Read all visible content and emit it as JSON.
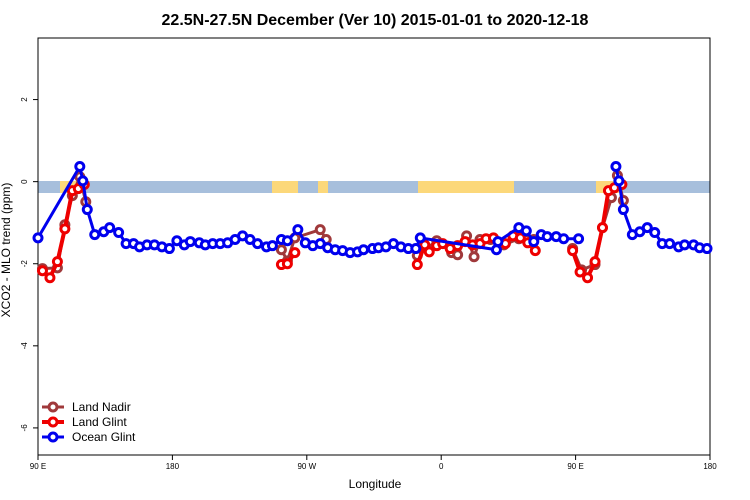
{
  "chart_data": {
    "type": "line",
    "title": "22.5N-27.5N December (Ver 10)   2015-01-01 to 2020-12-18",
    "x_label": "Longitude",
    "y_label": "XCO2 - MLO trend (ppm)",
    "xlim": [
      90,
      540
    ],
    "ylim": [
      -6.66,
      3.5
    ],
    "xticks": [
      {
        "value": 90,
        "label": "90 E"
      },
      {
        "value": 180,
        "label": "180"
      },
      {
        "value": 270,
        "label": "90 W"
      },
      {
        "value": 360,
        "label": "0"
      },
      {
        "value": 450,
        "label": "90 E"
      },
      {
        "value": 540,
        "label": "180"
      }
    ],
    "yticks": [
      -6,
      -4,
      -2,
      0,
      2
    ],
    "legend": "bottom-left",
    "series": [
      {
        "name": "Land Nadir",
        "color": "#a0393b",
        "width": 3,
        "x": [
          93,
          103,
          108,
          113,
          118,
          122,
          190,
          253,
          257,
          262,
          279,
          283,
          300,
          344,
          357,
          367,
          371,
          377,
          382,
          386,
          393,
          402,
          412,
          417,
          422,
          440,
          448,
          454,
          463,
          468,
          474,
          478,
          482
        ],
        "values": [
          -2.12,
          -2.1,
          -1.05,
          -0.34,
          0.12,
          -0.49,
          null,
          -1.66,
          -1.93,
          -1.37,
          -1.17,
          -1.41,
          null,
          -1.8,
          -1.44,
          -1.73,
          -1.78,
          -1.32,
          -1.83,
          -1.41,
          -1.41,
          -1.54,
          -1.39,
          -1.41,
          -1.41,
          null,
          -1.63,
          -2.15,
          -2.02,
          -1.12,
          -0.39,
          0.15,
          -0.46
        ]
      },
      {
        "name": "Land Glint",
        "color": "#ee0000",
        "width": 4,
        "x": [
          93,
          98,
          103,
          108,
          113,
          117,
          121,
          190,
          253,
          257,
          262,
          300,
          344,
          349,
          352,
          357,
          361,
          366,
          371,
          376,
          381,
          386,
          390,
          395,
          399,
          403,
          408,
          413,
          418,
          423,
          440,
          448,
          453,
          458,
          463,
          468,
          472,
          476,
          481
        ],
        "values": [
          -2.17,
          -2.34,
          -1.95,
          -1.15,
          -0.22,
          -0.17,
          -0.07,
          null,
          -2.02,
          -2,
          -1.73,
          null,
          -2.02,
          -1.54,
          -1.71,
          -1.56,
          -1.51,
          -1.63,
          -1.56,
          -1.46,
          -1.54,
          -1.51,
          -1.39,
          -1.37,
          -1.49,
          -1.51,
          -1.32,
          -1.37,
          -1.49,
          -1.68,
          null,
          -1.68,
          -2.2,
          -2.34,
          -1.95,
          -1.12,
          -0.22,
          -0.15,
          -0.07
        ]
      },
      {
        "name": "Ocean Glint",
        "color": "#0000ee",
        "width": 3,
        "x": [
          90,
          118,
          120,
          123,
          128,
          134,
          138,
          144,
          149,
          154,
          158,
          163,
          168,
          173,
          178,
          183,
          188,
          192,
          198,
          202,
          207,
          212,
          217,
          222,
          227,
          232,
          237,
          243,
          247,
          253,
          257,
          264,
          269,
          274,
          279,
          284,
          289,
          294,
          299,
          304,
          308,
          314,
          318,
          323,
          328,
          333,
          338,
          343,
          346,
          397,
          398,
          412,
          417,
          422,
          427,
          431,
          437,
          442,
          452,
          465,
          477,
          479,
          482,
          488,
          493,
          498,
          503,
          508,
          513,
          519,
          523,
          529,
          533,
          538
        ],
        "values": [
          -1.37,
          0.37,
          0.02,
          -0.68,
          -1.29,
          -1.22,
          -1.12,
          -1.24,
          -1.51,
          -1.51,
          -1.59,
          -1.54,
          -1.54,
          -1.59,
          -1.63,
          -1.44,
          -1.54,
          -1.46,
          -1.49,
          -1.54,
          -1.51,
          -1.51,
          -1.49,
          -1.41,
          -1.32,
          -1.41,
          -1.51,
          -1.59,
          -1.56,
          -1.41,
          -1.44,
          -1.17,
          -1.49,
          -1.56,
          -1.51,
          -1.61,
          -1.66,
          -1.68,
          -1.73,
          -1.71,
          -1.66,
          -1.63,
          -1.61,
          -1.59,
          -1.51,
          -1.59,
          -1.63,
          -1.63,
          -1.37,
          -1.66,
          -1.46,
          -1.12,
          -1.2,
          -1.46,
          -1.29,
          -1.34,
          -1.34,
          -1.39,
          -1.39,
          null,
          0.37,
          0.02,
          -0.68,
          -1.29,
          -1.22,
          -1.12,
          -1.24,
          -1.51,
          -1.51,
          -1.59,
          -1.54,
          -1.54,
          -1.61,
          -1.63
        ]
      }
    ]
  }
}
